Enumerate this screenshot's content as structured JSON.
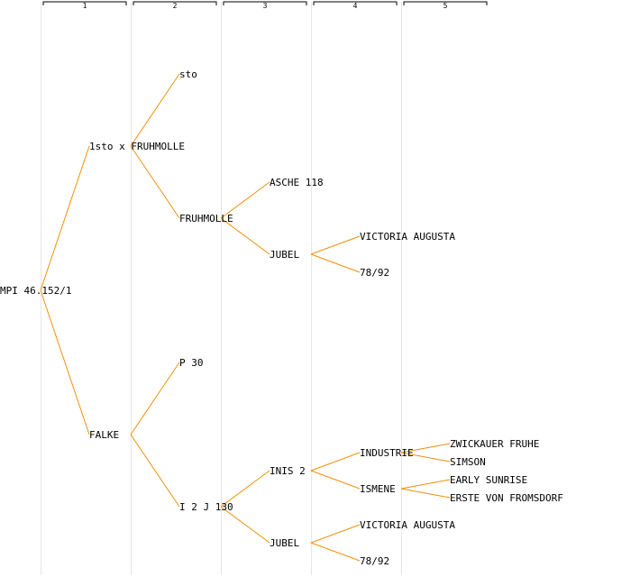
{
  "colors": {
    "edge": "#f0900a",
    "column_line": "#e6e6e6",
    "header": "#000000",
    "text": "#000000"
  },
  "generations": [
    "1",
    "2",
    "3",
    "4",
    "5"
  ],
  "tree": {
    "label": "MPI 46.152/1",
    "children": [
      {
        "label": "1sto x FRUHMOLLE",
        "children": [
          {
            "label": "sto"
          },
          {
            "label": "FRUHMOLLE",
            "children": [
              {
                "label": "ASCHE 118"
              },
              {
                "label": "JUBEL",
                "children": [
                  {
                    "label": "VICTORIA AUGUSTA"
                  },
                  {
                    "label": "78/92"
                  }
                ]
              }
            ]
          }
        ]
      },
      {
        "label": "FALKE",
        "children": [
          {
            "label": "P 30"
          },
          {
            "label": "I 2 J 130",
            "children": [
              {
                "label": "INIS 2",
                "children": [
                  {
                    "label": "INDUSTRIE",
                    "children": [
                      {
                        "label": "ZWICKAUER FRUHE"
                      },
                      {
                        "label": "SIMSON"
                      }
                    ]
                  },
                  {
                    "label": "ISMENE",
                    "children": [
                      {
                        "label": "EARLY SUNRISE"
                      },
                      {
                        "label": "ERSTE VON FROMSDORF"
                      }
                    ]
                  }
                ]
              },
              {
                "label": "JUBEL",
                "children": [
                  {
                    "label": "VICTORIA AUGUSTA"
                  },
                  {
                    "label": "78/92"
                  }
                ]
              }
            ]
          }
        ]
      }
    ]
  }
}
